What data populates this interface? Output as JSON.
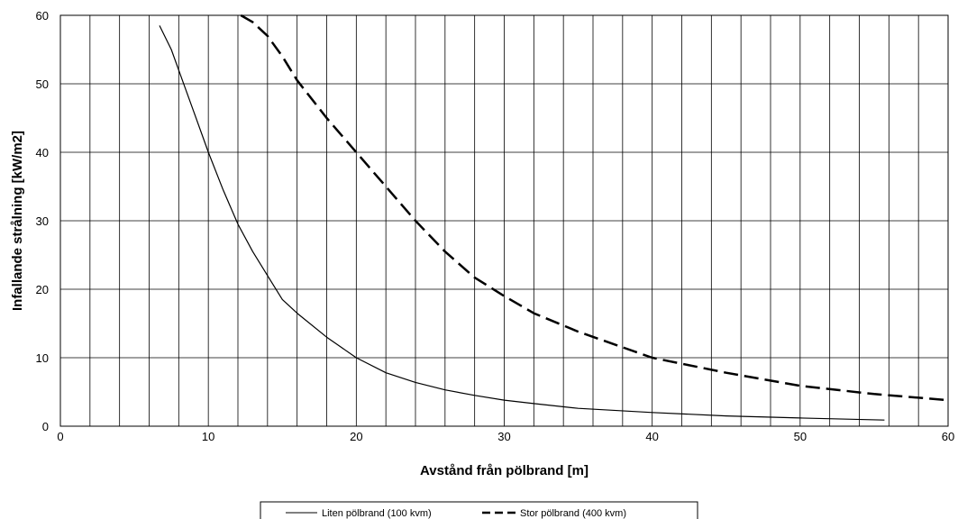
{
  "chart_data": {
    "type": "line",
    "title": "",
    "xlabel": "Avstånd från pölbrand [m]",
    "ylabel": "Infallande strålning [kW/m2]",
    "xlim": [
      0,
      60
    ],
    "ylim": [
      0,
      60
    ],
    "x_ticks": [
      "0",
      "10",
      "20",
      "30",
      "40",
      "50",
      "60"
    ],
    "y_ticks": [
      "0",
      "10",
      "20",
      "30",
      "40",
      "50",
      "60"
    ],
    "x_grid_step": 2,
    "y_grid_step": 10,
    "grid": true,
    "legend_position": "bottom-center",
    "series": [
      {
        "name": "Liten pölbrand (100 kvm)",
        "style": "solid",
        "color": "#000000",
        "x": [
          6.7,
          7.5,
          8,
          9,
          10,
          11,
          12,
          13,
          14,
          15,
          16,
          18,
          20,
          22,
          24,
          26,
          28,
          30,
          32,
          35,
          40,
          45,
          50,
          55.7
        ],
        "y": [
          58.5,
          55,
          52,
          46,
          40,
          34.5,
          29.5,
          25.5,
          22,
          18.5,
          16.5,
          13,
          10,
          7.8,
          6.4,
          5.3,
          4.5,
          3.8,
          3.3,
          2.6,
          2.0,
          1.5,
          1.2,
          0.9
        ]
      },
      {
        "name": "Stor pölbrand (400 kvm)",
        "style": "dashed",
        "color": "#000000",
        "x": [
          12.2,
          13,
          14,
          15,
          16,
          18,
          20,
          22,
          24,
          26,
          28,
          30,
          32,
          35,
          40,
          45,
          50,
          55,
          60
        ],
        "y": [
          60,
          59,
          57,
          54,
          50.5,
          45,
          40,
          35,
          30,
          25.5,
          21.7,
          19,
          16.5,
          13.8,
          10,
          7.8,
          5.9,
          4.7,
          3.8
        ]
      }
    ]
  }
}
